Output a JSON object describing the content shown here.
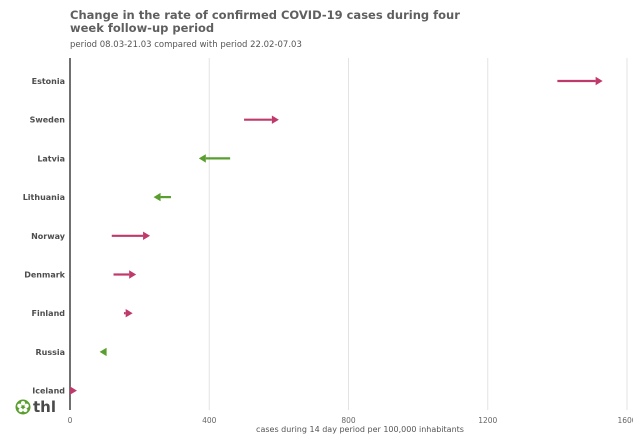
{
  "chart_data": {
    "type": "arrow",
    "title": "Change in the rate of confirmed COVID-19 cases during four week follow-up period",
    "subtitle": "period 08.03-21.03 compared with period 22.02-07.03",
    "xlabel": "cases during 14 day period per 100,000 inhabitants",
    "xlim": [
      0,
      1600
    ],
    "xticks": [
      "0",
      "400",
      "800",
      "1200",
      "1600"
    ],
    "grid": true,
    "increase_color": "#c0396b",
    "decrease_color": "#5a9e2f",
    "categories": [
      "Estonia",
      "Sweden",
      "Latvia",
      "Lithuania",
      "Norway",
      "Denmark",
      "Finland",
      "Russia",
      "Iceland"
    ],
    "series": [
      {
        "values_start": [
          1400,
          500,
          460,
          290,
          120,
          125,
          155,
          105,
          0
        ]
      },
      {
        "values_end": [
          1530,
          600,
          370,
          240,
          230,
          190,
          180,
          85,
          20
        ]
      }
    ]
  },
  "logo": {
    "text": "thl"
  }
}
